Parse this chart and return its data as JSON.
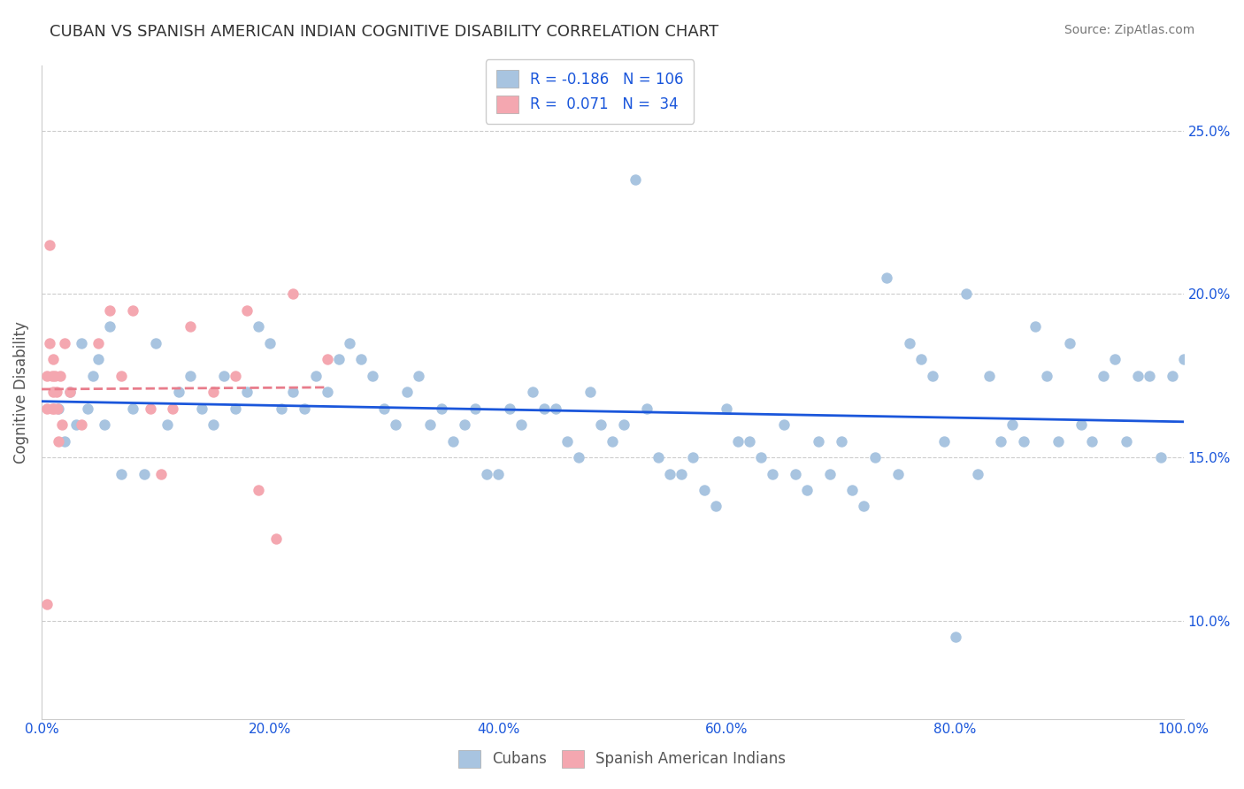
{
  "title": "CUBAN VS SPANISH AMERICAN INDIAN COGNITIVE DISABILITY CORRELATION CHART",
  "source": "Source: ZipAtlas.com",
  "xlabel_ticks": [
    "0.0%",
    "20.0%",
    "40.0%",
    "60.0%",
    "80.0%",
    "100.0%"
  ],
  "xlabel_vals": [
    0,
    20,
    40,
    60,
    80,
    100
  ],
  "ylabel": "Cognitive Disability",
  "ylabel_ticks": [
    "10.0%",
    "15.0%",
    "20.0%",
    "25.0%"
  ],
  "ylabel_vals": [
    10,
    15,
    20,
    25
  ],
  "xlim": [
    0,
    100
  ],
  "ylim": [
    7,
    27
  ],
  "legend_r_blue": "-0.186",
  "legend_n_blue": "106",
  "legend_r_pink": "0.071",
  "legend_n_pink": "34",
  "blue_color": "#a8c4e0",
  "pink_color": "#f4a7b0",
  "blue_line_color": "#1a56db",
  "pink_line_color": "#e87c8b",
  "grid_color": "#cccccc",
  "title_color": "#333333",
  "axis_label_color": "#1a56db",
  "blue_scatter_x": [
    1.5,
    2.0,
    2.5,
    3.0,
    3.5,
    4.0,
    4.5,
    5.0,
    5.5,
    6.0,
    7.0,
    8.0,
    9.0,
    10.0,
    11.0,
    12.0,
    13.0,
    14.0,
    15.0,
    16.0,
    17.0,
    18.0,
    19.0,
    20.0,
    21.0,
    22.0,
    23.0,
    24.0,
    25.0,
    26.0,
    27.0,
    28.0,
    29.0,
    30.0,
    31.0,
    32.0,
    33.0,
    34.0,
    35.0,
    36.0,
    37.0,
    38.0,
    39.0,
    40.0,
    41.0,
    42.0,
    43.0,
    44.0,
    45.0,
    46.0,
    47.0,
    48.0,
    49.0,
    50.0,
    51.0,
    52.0,
    53.0,
    54.0,
    55.0,
    56.0,
    57.0,
    58.0,
    59.0,
    60.0,
    61.0,
    62.0,
    63.0,
    64.0,
    65.0,
    66.0,
    67.0,
    68.0,
    69.0,
    70.0,
    71.0,
    72.0,
    73.0,
    74.0,
    75.0,
    76.0,
    77.0,
    78.0,
    79.0,
    80.0,
    81.0,
    82.0,
    83.0,
    84.0,
    85.0,
    86.0,
    87.0,
    88.0,
    89.0,
    90.0,
    91.0,
    92.0,
    93.0,
    94.0,
    95.0,
    96.0,
    97.0,
    98.0,
    99.0,
    100.0,
    101.0,
    102.0
  ],
  "blue_scatter_y": [
    16.5,
    15.5,
    17.0,
    16.0,
    18.5,
    16.5,
    17.5,
    18.0,
    16.0,
    19.0,
    14.5,
    16.5,
    14.5,
    18.5,
    16.0,
    17.0,
    17.5,
    16.5,
    16.0,
    17.5,
    16.5,
    17.0,
    19.0,
    18.5,
    16.5,
    17.0,
    16.5,
    17.5,
    17.0,
    18.0,
    18.5,
    18.0,
    17.5,
    16.5,
    16.0,
    17.0,
    17.5,
    16.0,
    16.5,
    15.5,
    16.0,
    16.5,
    14.5,
    14.5,
    16.5,
    16.0,
    17.0,
    16.5,
    16.5,
    15.5,
    15.0,
    17.0,
    16.0,
    15.5,
    16.0,
    23.5,
    16.5,
    15.0,
    14.5,
    14.5,
    15.0,
    14.0,
    13.5,
    16.5,
    15.5,
    15.5,
    15.0,
    14.5,
    16.0,
    14.5,
    14.0,
    15.5,
    14.5,
    15.5,
    14.0,
    13.5,
    15.0,
    20.5,
    14.5,
    18.5,
    18.0,
    17.5,
    15.5,
    9.5,
    20.0,
    14.5,
    17.5,
    15.5,
    16.0,
    15.5,
    19.0,
    17.5,
    15.5,
    18.5,
    16.0,
    15.5,
    17.5,
    18.0,
    15.5,
    17.5,
    17.5,
    15.0,
    17.5,
    18.0,
    17.0,
    18.0
  ],
  "pink_scatter_x": [
    0.5,
    0.5,
    0.5,
    0.7,
    0.7,
    0.9,
    0.9,
    1.0,
    1.0,
    1.1,
    1.2,
    1.3,
    1.4,
    1.5,
    1.6,
    1.8,
    2.0,
    2.5,
    3.5,
    5.0,
    6.0,
    7.0,
    8.0,
    9.5,
    10.5,
    11.5,
    13.0,
    15.0,
    17.0,
    18.0,
    19.0,
    20.5,
    22.0,
    25.0
  ],
  "pink_scatter_y": [
    10.5,
    16.5,
    17.5,
    18.5,
    21.5,
    16.5,
    17.5,
    17.0,
    18.0,
    16.5,
    17.5,
    17.0,
    16.5,
    15.5,
    17.5,
    16.0,
    18.5,
    17.0,
    16.0,
    18.5,
    19.5,
    17.5,
    19.5,
    16.5,
    14.5,
    16.5,
    19.0,
    17.0,
    17.5,
    19.5,
    14.0,
    12.5,
    20.0,
    18.0
  ]
}
